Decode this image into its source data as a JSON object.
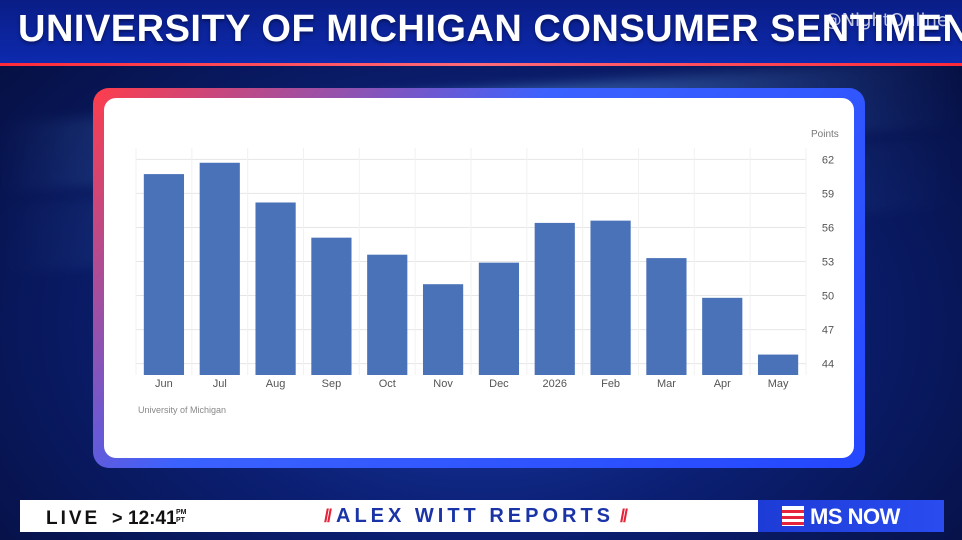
{
  "header": {
    "title": "UNIVERSITY OF MICHIGAN CONSUMER SENTIMENT",
    "watermark": "@NightOnline"
  },
  "chart_data": {
    "type": "bar",
    "categories": [
      "Jun",
      "Jul",
      "Aug",
      "Sep",
      "Oct",
      "Nov",
      "Dec",
      "2026",
      "Feb",
      "Mar",
      "Apr",
      "May"
    ],
    "values": [
      60.7,
      61.7,
      58.2,
      55.1,
      53.6,
      51.0,
      52.9,
      56.4,
      56.6,
      53.3,
      49.8,
      44.8
    ],
    "yticks": [
      62,
      59,
      56,
      53,
      50,
      47,
      44
    ],
    "ylim": [
      43,
      63
    ],
    "ylabel": "Points",
    "source": "University of Michigan",
    "grid": true,
    "colors": {
      "bar": "#4a72b8",
      "grid": "#e6e6e6",
      "text": "#555555"
    }
  },
  "ticker": {
    "live_label": "LIVE",
    "chevron": ">",
    "time": "12:41",
    "tz_top": "PM",
    "tz_bottom": "PT",
    "show_name": "ALEX WITT REPORTS",
    "slash_left": "//",
    "slash_right": "//",
    "network": "MS NOW"
  }
}
